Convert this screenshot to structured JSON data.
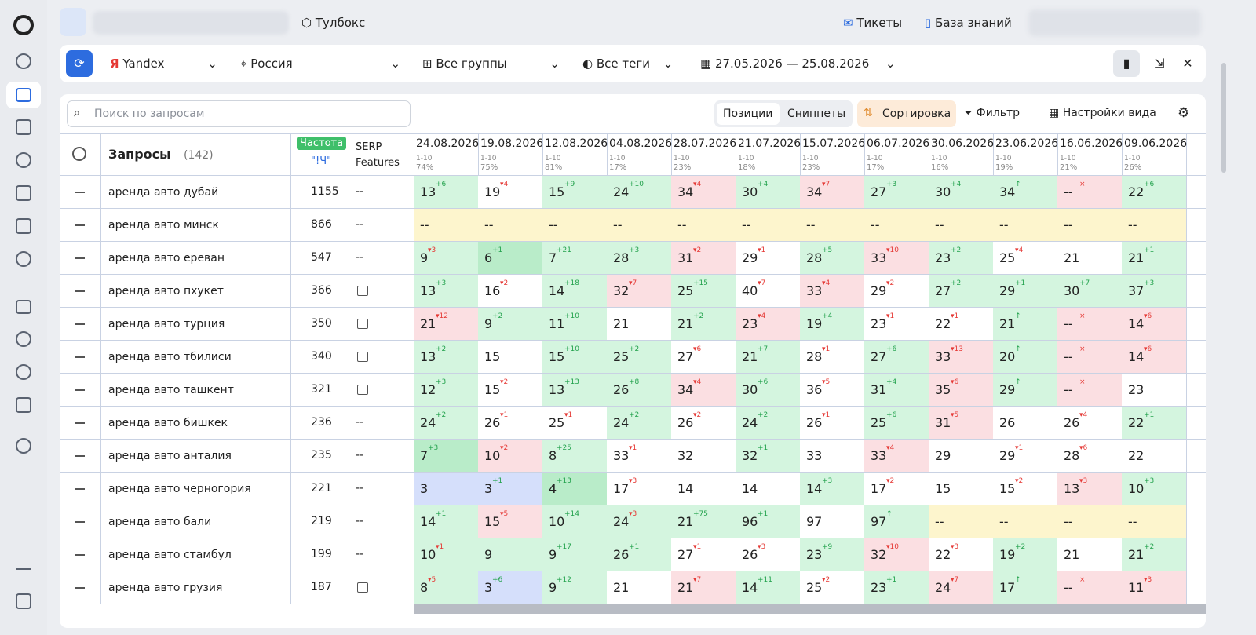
{
  "topbar": {
    "toolbox": "Тулбокс",
    "tickets": "Тикеты",
    "knowledge": "База знаний"
  },
  "filters": {
    "engine": "Yandex",
    "region": "Россия",
    "groups": "Все группы",
    "tags": "Все теги",
    "dates": "27.05.2026 — 25.08.2026"
  },
  "toolbar": {
    "search_placeholder": "Поиск по запросам",
    "positions": "Позиции",
    "snippets": "Сниппеты",
    "sort": "Сортировка",
    "filter": "Фильтр",
    "view": "Настройки вида"
  },
  "table": {
    "queries": "Запросы",
    "count": "(142)",
    "freq": "Частота",
    "freq_sub": "\"!Ч\"",
    "serp": "SERP Features",
    "dates": [
      {
        "date": "24.08.2026",
        "range": "1-10",
        "share": "74%"
      },
      {
        "date": "19.08.2026",
        "range": "1-10",
        "share": "75%"
      },
      {
        "date": "12.08.2026",
        "range": "1-10",
        "share": "81%"
      },
      {
        "date": "04.08.2026",
        "range": "1-10",
        "share": "17%"
      },
      {
        "date": "28.07.2026",
        "range": "1-10",
        "share": "23%"
      },
      {
        "date": "21.07.2026",
        "range": "1-10",
        "share": "18%"
      },
      {
        "date": "15.07.2026",
        "range": "1-10",
        "share": "23%"
      },
      {
        "date": "06.07.2026",
        "range": "1-10",
        "share": "17%"
      },
      {
        "date": "30.06.2026",
        "range": "1-10",
        "share": "16%"
      },
      {
        "date": "23.06.2026",
        "range": "1-10",
        "share": "19%"
      },
      {
        "date": "16.06.2026",
        "range": "1-10",
        "share": "21%"
      },
      {
        "date": "09.06.2026",
        "range": "1-10",
        "share": "26%"
      }
    ],
    "rows": [
      {
        "q": "аренда авто дубай",
        "f": "1155",
        "s": "--",
        "cells": [
          {
            "p": "13",
            "d": "+6",
            "c": "g"
          },
          {
            "p": "19",
            "d": "▾4",
            "c": "w"
          },
          {
            "p": "15",
            "d": "+9",
            "c": "g"
          },
          {
            "p": "24",
            "d": "+10",
            "c": "g"
          },
          {
            "p": "34",
            "d": "▾4",
            "c": "r"
          },
          {
            "p": "30",
            "d": "+4",
            "c": "g"
          },
          {
            "p": "34",
            "d": "▾7",
            "c": "r"
          },
          {
            "p": "27",
            "d": "+3",
            "c": "g"
          },
          {
            "p": "30",
            "d": "+4",
            "c": "g"
          },
          {
            "p": "34",
            "d": "↑",
            "c": "g"
          },
          {
            "p": "--",
            "d": "×",
            "c": "r"
          },
          {
            "p": "22",
            "d": "+6",
            "c": "g"
          }
        ]
      },
      {
        "q": "аренда авто минск",
        "f": "866",
        "s": "--",
        "cells": [
          {
            "p": "--",
            "c": "y"
          },
          {
            "p": "--",
            "c": "y"
          },
          {
            "p": "--",
            "c": "y"
          },
          {
            "p": "--",
            "c": "y"
          },
          {
            "p": "--",
            "c": "y"
          },
          {
            "p": "--",
            "c": "y"
          },
          {
            "p": "--",
            "c": "y"
          },
          {
            "p": "--",
            "c": "y"
          },
          {
            "p": "--",
            "c": "y"
          },
          {
            "p": "--",
            "c": "y"
          },
          {
            "p": "--",
            "c": "y"
          },
          {
            "p": "--",
            "c": "y"
          }
        ]
      },
      {
        "q": "аренда авто ереван",
        "f": "547",
        "s": "--",
        "cells": [
          {
            "p": "9",
            "d": "▾3",
            "c": "g"
          },
          {
            "p": "6",
            "d": "+1",
            "c": "dg"
          },
          {
            "p": "7",
            "d": "+21",
            "c": "g"
          },
          {
            "p": "28",
            "d": "+3",
            "c": "g"
          },
          {
            "p": "31",
            "d": "▾2",
            "c": "r"
          },
          {
            "p": "29",
            "d": "▾1",
            "c": "w"
          },
          {
            "p": "28",
            "d": "+5",
            "c": "g"
          },
          {
            "p": "33",
            "d": "▾10",
            "c": "r"
          },
          {
            "p": "23",
            "d": "+2",
            "c": "g"
          },
          {
            "p": "25",
            "d": "▾4",
            "c": "w"
          },
          {
            "p": "21",
            "c": "w"
          },
          {
            "p": "21",
            "d": "+1",
            "c": "g"
          }
        ]
      },
      {
        "q": "аренда авто пхукет",
        "f": "366",
        "s": "img",
        "cells": [
          {
            "p": "13",
            "d": "+3",
            "c": "g"
          },
          {
            "p": "16",
            "d": "▾2",
            "c": "w"
          },
          {
            "p": "14",
            "d": "+18",
            "c": "g"
          },
          {
            "p": "32",
            "d": "▾7",
            "c": "r"
          },
          {
            "p": "25",
            "d": "+15",
            "c": "g"
          },
          {
            "p": "40",
            "d": "▾7",
            "c": "w"
          },
          {
            "p": "33",
            "d": "▾4",
            "c": "r"
          },
          {
            "p": "29",
            "d": "▾2",
            "c": "w"
          },
          {
            "p": "27",
            "d": "+2",
            "c": "g"
          },
          {
            "p": "29",
            "d": "+1",
            "c": "g"
          },
          {
            "p": "30",
            "d": "+7",
            "c": "g"
          },
          {
            "p": "37",
            "d": "+3",
            "c": "g"
          }
        ]
      },
      {
        "q": "аренда авто турция",
        "f": "350",
        "s": "img",
        "cells": [
          {
            "p": "21",
            "d": "▾12",
            "c": "r"
          },
          {
            "p": "9",
            "d": "+2",
            "c": "g"
          },
          {
            "p": "11",
            "d": "+10",
            "c": "g"
          },
          {
            "p": "21",
            "c": "w"
          },
          {
            "p": "21",
            "d": "+2",
            "c": "g"
          },
          {
            "p": "23",
            "d": "▾4",
            "c": "r"
          },
          {
            "p": "19",
            "d": "+4",
            "c": "g"
          },
          {
            "p": "23",
            "d": "▾1",
            "c": "w"
          },
          {
            "p": "22",
            "d": "▾1",
            "c": "w"
          },
          {
            "p": "21",
            "d": "↑",
            "c": "g"
          },
          {
            "p": "--",
            "d": "×",
            "c": "r"
          },
          {
            "p": "14",
            "d": "▾6",
            "c": "r"
          }
        ]
      },
      {
        "q": "аренда авто тбилиси",
        "f": "340",
        "s": "img",
        "cells": [
          {
            "p": "13",
            "d": "+2",
            "c": "g"
          },
          {
            "p": "15",
            "c": "w"
          },
          {
            "p": "15",
            "d": "+10",
            "c": "g"
          },
          {
            "p": "25",
            "d": "+2",
            "c": "g"
          },
          {
            "p": "27",
            "d": "▾6",
            "c": "w"
          },
          {
            "p": "21",
            "d": "+7",
            "c": "g"
          },
          {
            "p": "28",
            "d": "▾1",
            "c": "w"
          },
          {
            "p": "27",
            "d": "+6",
            "c": "g"
          },
          {
            "p": "33",
            "d": "▾13",
            "c": "r"
          },
          {
            "p": "20",
            "d": "↑",
            "c": "g"
          },
          {
            "p": "--",
            "d": "×",
            "c": "r"
          },
          {
            "p": "14",
            "d": "▾6",
            "c": "r"
          }
        ]
      },
      {
        "q": "аренда авто ташкент",
        "f": "321",
        "s": "img",
        "cells": [
          {
            "p": "12",
            "d": "+3",
            "c": "g"
          },
          {
            "p": "15",
            "d": "▾2",
            "c": "w"
          },
          {
            "p": "13",
            "d": "+13",
            "c": "g"
          },
          {
            "p": "26",
            "d": "+8",
            "c": "g"
          },
          {
            "p": "34",
            "d": "▾4",
            "c": "r"
          },
          {
            "p": "30",
            "d": "+6",
            "c": "g"
          },
          {
            "p": "36",
            "d": "▾5",
            "c": "w"
          },
          {
            "p": "31",
            "d": "+4",
            "c": "g"
          },
          {
            "p": "35",
            "d": "▾6",
            "c": "r"
          },
          {
            "p": "29",
            "d": "↑",
            "c": "g"
          },
          {
            "p": "--",
            "d": "×",
            "c": "r"
          },
          {
            "p": "23",
            "c": "w"
          }
        ]
      },
      {
        "q": "аренда авто бишкек",
        "f": "236",
        "s": "--",
        "cells": [
          {
            "p": "24",
            "d": "+2",
            "c": "g"
          },
          {
            "p": "26",
            "d": "▾1",
            "c": "w"
          },
          {
            "p": "25",
            "d": "▾1",
            "c": "w"
          },
          {
            "p": "24",
            "d": "+2",
            "c": "g"
          },
          {
            "p": "26",
            "d": "▾2",
            "c": "w"
          },
          {
            "p": "24",
            "d": "+2",
            "c": "g"
          },
          {
            "p": "26",
            "d": "▾1",
            "c": "w"
          },
          {
            "p": "25",
            "d": "+6",
            "c": "g"
          },
          {
            "p": "31",
            "d": "▾5",
            "c": "r"
          },
          {
            "p": "26",
            "c": "w"
          },
          {
            "p": "26",
            "d": "▾4",
            "c": "w"
          },
          {
            "p": "22",
            "d": "+1",
            "c": "g"
          }
        ]
      },
      {
        "q": "аренда авто анталия",
        "f": "235",
        "s": "--",
        "cells": [
          {
            "p": "7",
            "d": "+3",
            "c": "dg"
          },
          {
            "p": "10",
            "d": "▾2",
            "c": "r"
          },
          {
            "p": "8",
            "d": "+25",
            "c": "g"
          },
          {
            "p": "33",
            "d": "▾1",
            "c": "w"
          },
          {
            "p": "32",
            "c": "w"
          },
          {
            "p": "32",
            "d": "+1",
            "c": "g"
          },
          {
            "p": "33",
            "c": "w"
          },
          {
            "p": "33",
            "d": "▾4",
            "c": "r"
          },
          {
            "p": "29",
            "c": "w"
          },
          {
            "p": "29",
            "d": "▾1",
            "c": "w"
          },
          {
            "p": "28",
            "d": "▾6",
            "c": "w"
          },
          {
            "p": "22",
            "c": "w"
          }
        ]
      },
      {
        "q": "аренда авто черногория",
        "f": "221",
        "s": "--",
        "cells": [
          {
            "p": "3",
            "c": "b"
          },
          {
            "p": "3",
            "d": "+1",
            "c": "b"
          },
          {
            "p": "4",
            "d": "+13",
            "c": "dg"
          },
          {
            "p": "17",
            "d": "▾3",
            "c": "w"
          },
          {
            "p": "14",
            "c": "w"
          },
          {
            "p": "14",
            "c": "w"
          },
          {
            "p": "14",
            "d": "+3",
            "c": "g"
          },
          {
            "p": "17",
            "d": "▾2",
            "c": "w"
          },
          {
            "p": "15",
            "c": "w"
          },
          {
            "p": "15",
            "d": "▾2",
            "c": "w"
          },
          {
            "p": "13",
            "d": "▾3",
            "c": "r"
          },
          {
            "p": "10",
            "d": "+3",
            "c": "g"
          }
        ]
      },
      {
        "q": "аренда авто бали",
        "f": "219",
        "s": "--",
        "cells": [
          {
            "p": "14",
            "d": "+1",
            "c": "g"
          },
          {
            "p": "15",
            "d": "▾5",
            "c": "r"
          },
          {
            "p": "10",
            "d": "+14",
            "c": "g"
          },
          {
            "p": "24",
            "d": "▾3",
            "c": "g"
          },
          {
            "p": "21",
            "d": "+75",
            "c": "g"
          },
          {
            "p": "96",
            "d": "+1",
            "c": "g"
          },
          {
            "p": "97",
            "c": "w"
          },
          {
            "p": "97",
            "d": "↑",
            "c": "g"
          },
          {
            "p": "--",
            "c": "y"
          },
          {
            "p": "--",
            "c": "y"
          },
          {
            "p": "--",
            "c": "y"
          },
          {
            "p": "--",
            "c": "y"
          }
        ]
      },
      {
        "q": "аренда авто стамбул",
        "f": "199",
        "s": "--",
        "cells": [
          {
            "p": "10",
            "d": "▾1",
            "c": "g"
          },
          {
            "p": "9",
            "c": "g"
          },
          {
            "p": "9",
            "d": "+17",
            "c": "g"
          },
          {
            "p": "26",
            "d": "+1",
            "c": "g"
          },
          {
            "p": "27",
            "d": "▾1",
            "c": "w"
          },
          {
            "p": "26",
            "d": "▾3",
            "c": "w"
          },
          {
            "p": "23",
            "d": "+9",
            "c": "g"
          },
          {
            "p": "32",
            "d": "▾10",
            "c": "r"
          },
          {
            "p": "22",
            "d": "▾3",
            "c": "w"
          },
          {
            "p": "19",
            "d": "+2",
            "c": "g"
          },
          {
            "p": "21",
            "c": "w"
          },
          {
            "p": "21",
            "d": "+2",
            "c": "g"
          }
        ]
      },
      {
        "q": "аренда авто грузия",
        "f": "187",
        "s": "img",
        "cells": [
          {
            "p": "8",
            "d": "▾5",
            "c": "g"
          },
          {
            "p": "3",
            "d": "+6",
            "c": "b"
          },
          {
            "p": "9",
            "d": "+12",
            "c": "g"
          },
          {
            "p": "21",
            "c": "w"
          },
          {
            "p": "21",
            "d": "▾7",
            "c": "r"
          },
          {
            "p": "14",
            "d": "+11",
            "c": "g"
          },
          {
            "p": "25",
            "d": "▾2",
            "c": "w"
          },
          {
            "p": "23",
            "d": "+1",
            "c": "g"
          },
          {
            "p": "24",
            "d": "▾7",
            "c": "r"
          },
          {
            "p": "17",
            "d": "↑",
            "c": "g"
          },
          {
            "p": "--",
            "d": "×",
            "c": "r"
          },
          {
            "p": "11",
            "d": "▾3",
            "c": "r"
          }
        ]
      }
    ]
  }
}
